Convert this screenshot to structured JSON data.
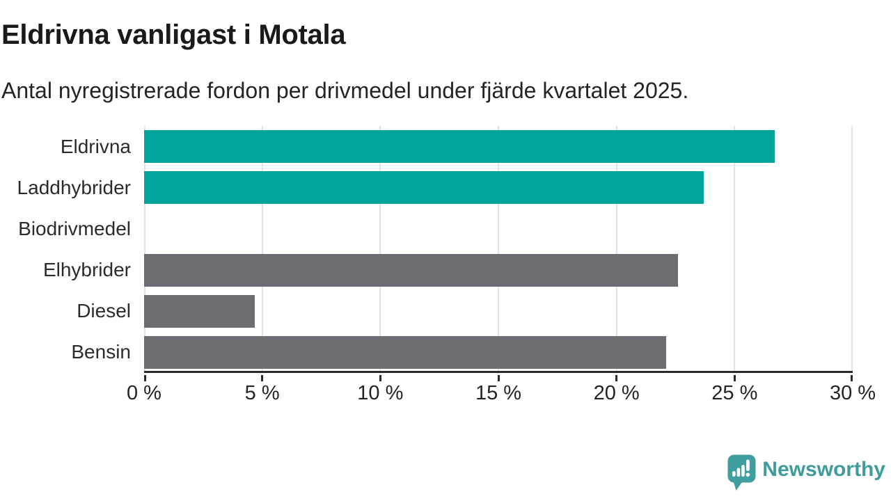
{
  "chart_data": {
    "type": "bar",
    "orientation": "horizontal",
    "title": "Eldrivna vanligast i Motala",
    "subtitle": "Antal nyregistrerade fordon per drivmedel under fjärde kvartalet 2025.",
    "categories": [
      "Eldrivna",
      "Laddhybrider",
      "Biodrivmedel",
      "Elhybrider",
      "Diesel",
      "Bensin"
    ],
    "values": [
      26.7,
      23.7,
      0,
      22.6,
      4.7,
      22.1
    ],
    "bar_colors": [
      "#00a49b",
      "#00a49b",
      "#00a49b",
      "#6c6c72",
      "#6c6c72",
      "#6c6c72"
    ],
    "xlabel": "",
    "ylabel": "",
    "xlim": [
      0,
      30
    ],
    "x_ticks": [
      0,
      5,
      10,
      15,
      20,
      25,
      30
    ],
    "x_tick_labels": [
      "0 %",
      "5 %",
      "10 %",
      "15 %",
      "20 %",
      "25 %",
      "30 %"
    ],
    "grid": "vertical",
    "legend": "none"
  },
  "colors": {
    "highlight": "#00a49b",
    "muted": "#6c6c72",
    "gridline": "#e3e3e6",
    "axis": "#2b2b2b",
    "brand": "#3f9c9d"
  },
  "branding": {
    "logo_text": "Newsworthy",
    "logo_icon": "speech-bubble-bar-chart-icon"
  }
}
